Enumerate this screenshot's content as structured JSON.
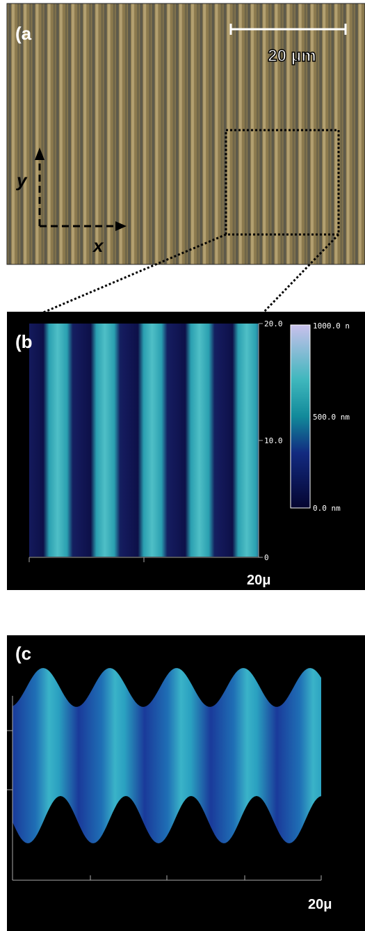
{
  "panel_a": {
    "label": "(a",
    "scale_bar": "20 μm",
    "axis_y": "y",
    "axis_x": "x"
  },
  "panel_b": {
    "label": "(b",
    "y_ticks": [
      "20.0",
      "10.0",
      "0"
    ],
    "colorbar_labels": [
      "1000.0 n",
      "500.0 nm",
      "0.0 nm"
    ],
    "scale": "20μ"
  },
  "panel_c": {
    "label": "(c",
    "scale": "20μ"
  }
}
